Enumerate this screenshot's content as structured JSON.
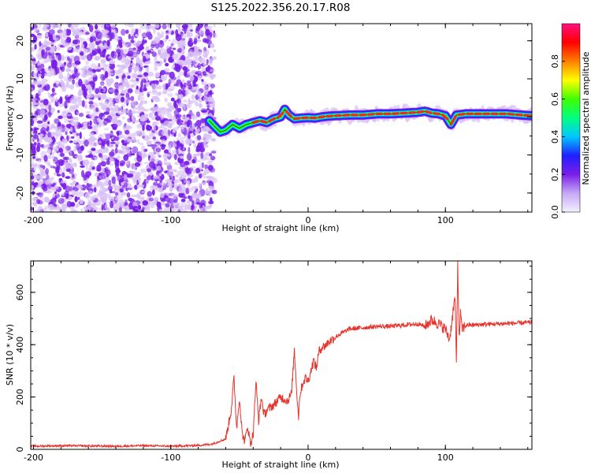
{
  "title": "S125.2022.356.20.17.R08",
  "colors": {
    "snr_line": "#e8332c",
    "spec_scatter": "#7a1fe8",
    "spec_scatter_light": "#d8c0f5",
    "axes": "#000000"
  },
  "chart_data": [
    {
      "type": "heatmap",
      "name": "spectrogram",
      "xlabel": "Height of straight line (km)",
      "ylabel": "Frequency (Hz)",
      "xlim": [
        -202,
        163
      ],
      "ylim": [
        -25,
        24.5
      ],
      "xticks": [
        -200,
        -100,
        0,
        100
      ],
      "yticks": [
        -20,
        -10,
        0,
        10,
        20
      ],
      "colorbar": {
        "label": "Normalized spectral amplitude",
        "range": [
          0,
          1
        ],
        "ticks": [
          0.0,
          0.2,
          0.4,
          0.6,
          0.8
        ],
        "colormap": [
          "#f5f0ff",
          "#c6a8f5",
          "#7a1fe8",
          "#1f1fff",
          "#00c8ff",
          "#00ff80",
          "#40ff00",
          "#ffff00",
          "#ff8000",
          "#ff0000",
          "#ff1080"
        ]
      },
      "noise_region": {
        "x": [
          -202,
          -68
        ],
        "y": [
          -25,
          24.5
        ]
      },
      "signal_track": {
        "x": [
          -72,
          -68,
          -64,
          -60,
          -55,
          -50,
          -45,
          -40,
          -35,
          -30,
          -25,
          -20,
          -17,
          -14,
          -10,
          -5,
          0,
          5,
          10,
          15,
          20,
          30,
          40,
          50,
          60,
          70,
          80,
          85,
          90,
          95,
          100,
          104,
          108,
          115,
          125,
          135,
          145,
          155,
          163
        ],
        "y": [
          -1,
          -2.5,
          -4,
          -3.5,
          -2,
          -3,
          -2,
          -1.5,
          -1,
          -1.5,
          -0.5,
          0,
          2,
          0.5,
          -0.5,
          -0.3,
          -0.2,
          -0.3,
          0,
          0.2,
          0.3,
          0.5,
          0.5,
          0.8,
          0.8,
          1,
          1.2,
          1.5,
          1,
          0.8,
          0.3,
          -2,
          0.5,
          0.8,
          0.8,
          0.8,
          0.8,
          0.5,
          0.3
        ]
      }
    },
    {
      "type": "line",
      "name": "snr",
      "xlabel": "Height of straight line (km)",
      "ylabel": "SNR (10 * v/v)",
      "xlim": [
        -202,
        163
      ],
      "ylim": [
        0,
        720
      ],
      "xticks": [
        -200,
        -100,
        0,
        100
      ],
      "yticks": [
        0,
        200,
        400,
        600
      ],
      "x": [
        -202,
        -180,
        -160,
        -140,
        -120,
        -100,
        -80,
        -70,
        -60,
        -56,
        -54,
        -52,
        -50,
        -48,
        -46,
        -44,
        -42,
        -40,
        -38,
        -36,
        -34,
        -32,
        -30,
        -25,
        -20,
        -15,
        -12,
        -10,
        -8,
        -7,
        -6,
        -4,
        -2,
        0,
        2,
        4,
        6,
        8,
        10,
        12,
        15,
        20,
        25,
        30,
        40,
        50,
        60,
        70,
        80,
        85,
        90,
        95,
        100,
        103,
        105,
        107,
        108,
        109,
        110,
        111,
        112,
        115,
        120,
        130,
        140,
        150,
        163
      ],
      "y": [
        12,
        14,
        13,
        12,
        14,
        12,
        15,
        20,
        40,
        150,
        270,
        80,
        200,
        60,
        30,
        90,
        20,
        60,
        260,
        110,
        200,
        130,
        150,
        170,
        200,
        185,
        215,
        380,
        200,
        125,
        210,
        250,
        275,
        260,
        300,
        340,
        310,
        375,
        390,
        395,
        410,
        430,
        445,
        460,
        465,
        470,
        470,
        475,
        480,
        470,
        495,
        480,
        460,
        420,
        500,
        585,
        330,
        720,
        420,
        520,
        460,
        475,
        475,
        478,
        480,
        482,
        485
      ]
    }
  ]
}
